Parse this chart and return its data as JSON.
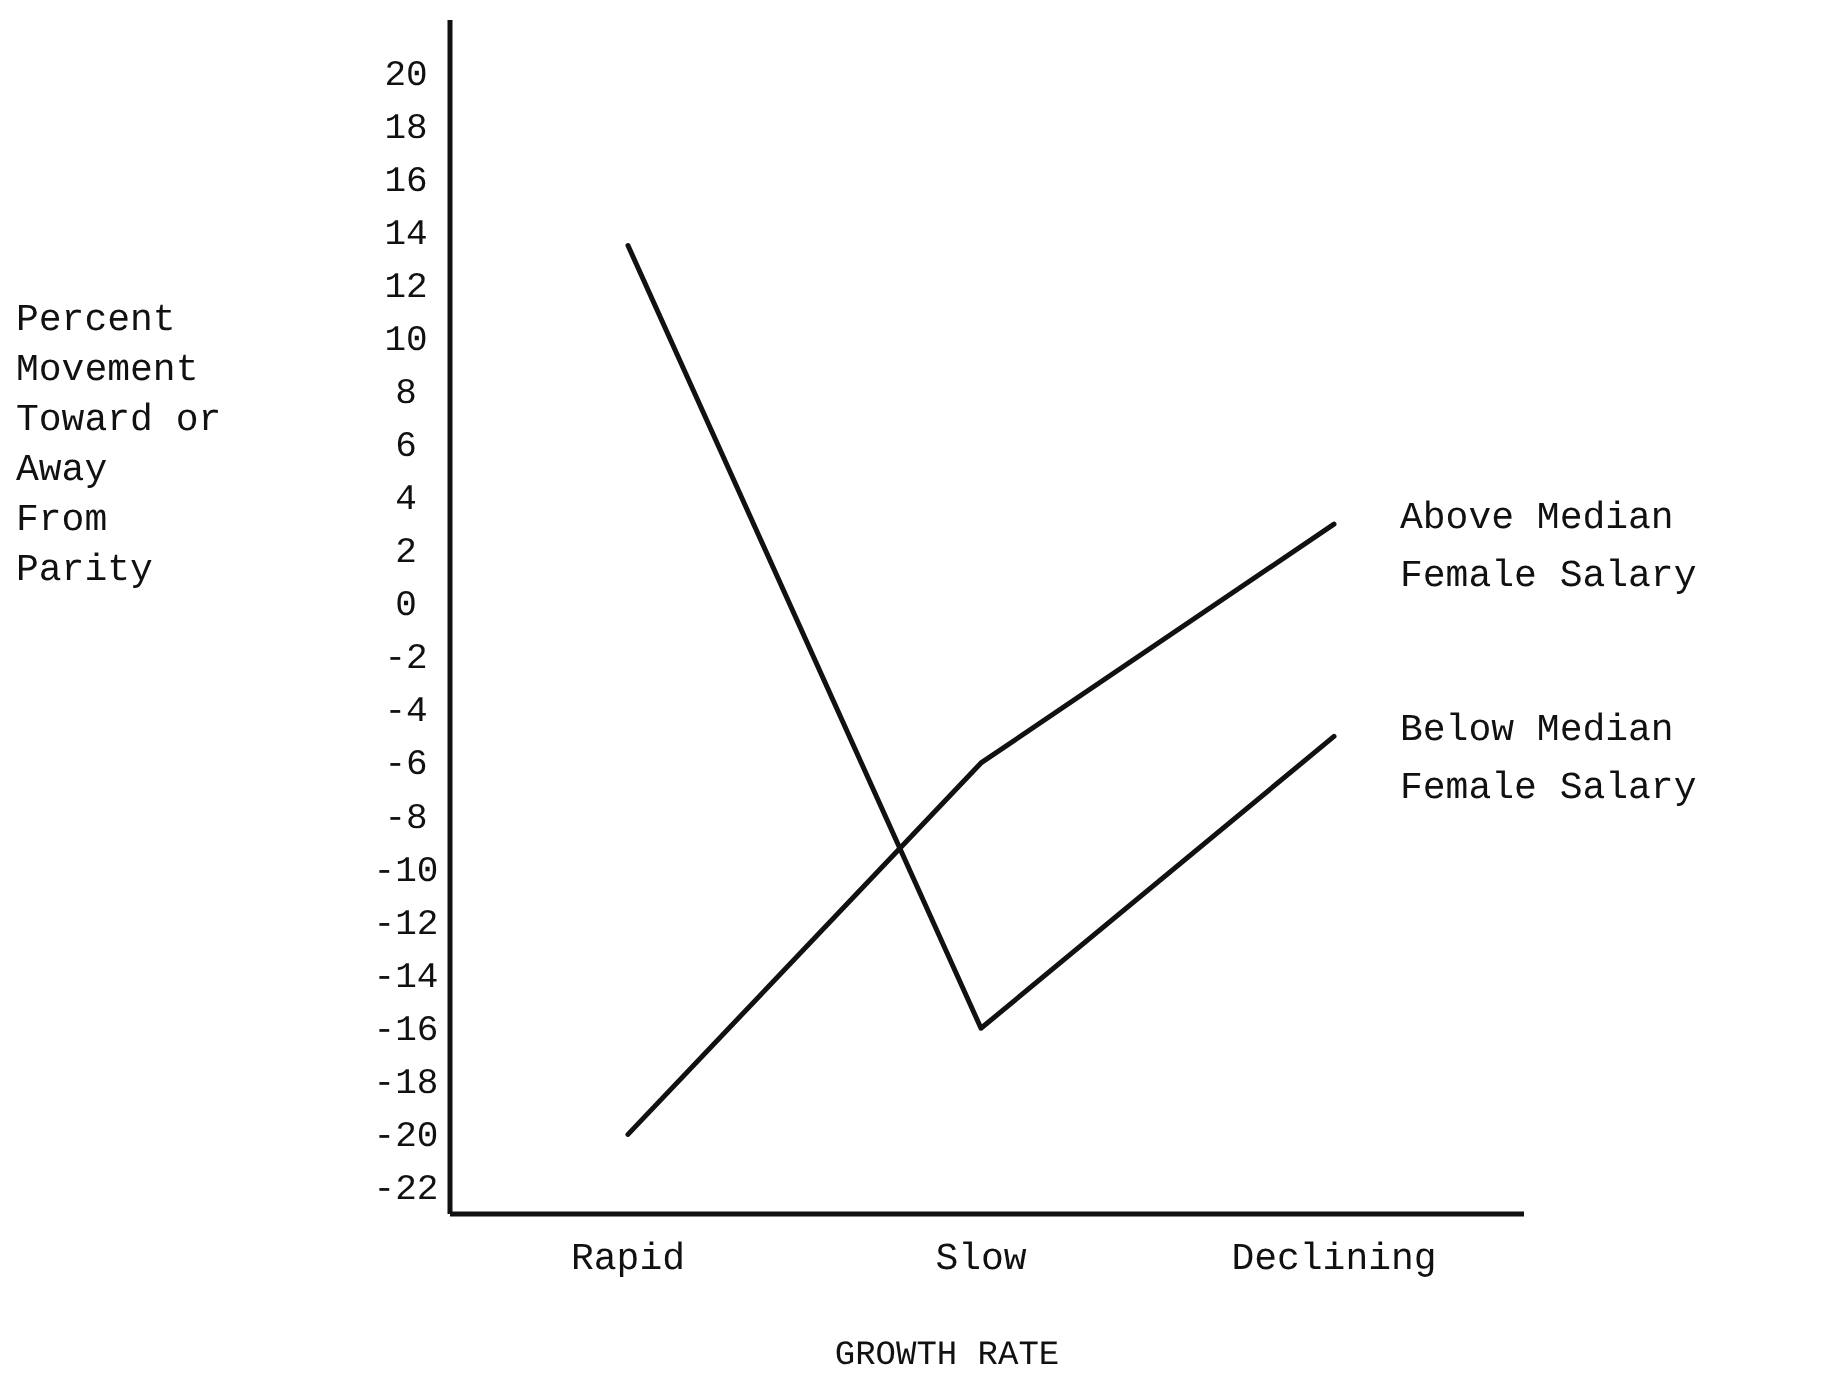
{
  "chart_data": {
    "type": "line",
    "xlabel": "GROWTH RATE",
    "ylabel": "Percent\nMovement\nToward or\nAway\nFrom\nParity",
    "categories": [
      "Rapid",
      "Slow",
      "Declining"
    ],
    "series": [
      {
        "name": "Above Median\nFemale Salary",
        "color": "#111111",
        "values": [
          -20,
          -6,
          3
        ]
      },
      {
        "name": "Below Median\nFemale Salary",
        "color": "#111111",
        "values": [
          13.5,
          -16,
          -5
        ]
      }
    ],
    "ylim": [
      -23,
      22
    ],
    "yticks": [
      20,
      18,
      16,
      14,
      12,
      10,
      8,
      6,
      4,
      2,
      0,
      -2,
      -4,
      -6,
      -8,
      -10,
      -12,
      -14,
      -16,
      -18,
      -20,
      -22
    ],
    "grid": false,
    "line_style": "solid"
  }
}
